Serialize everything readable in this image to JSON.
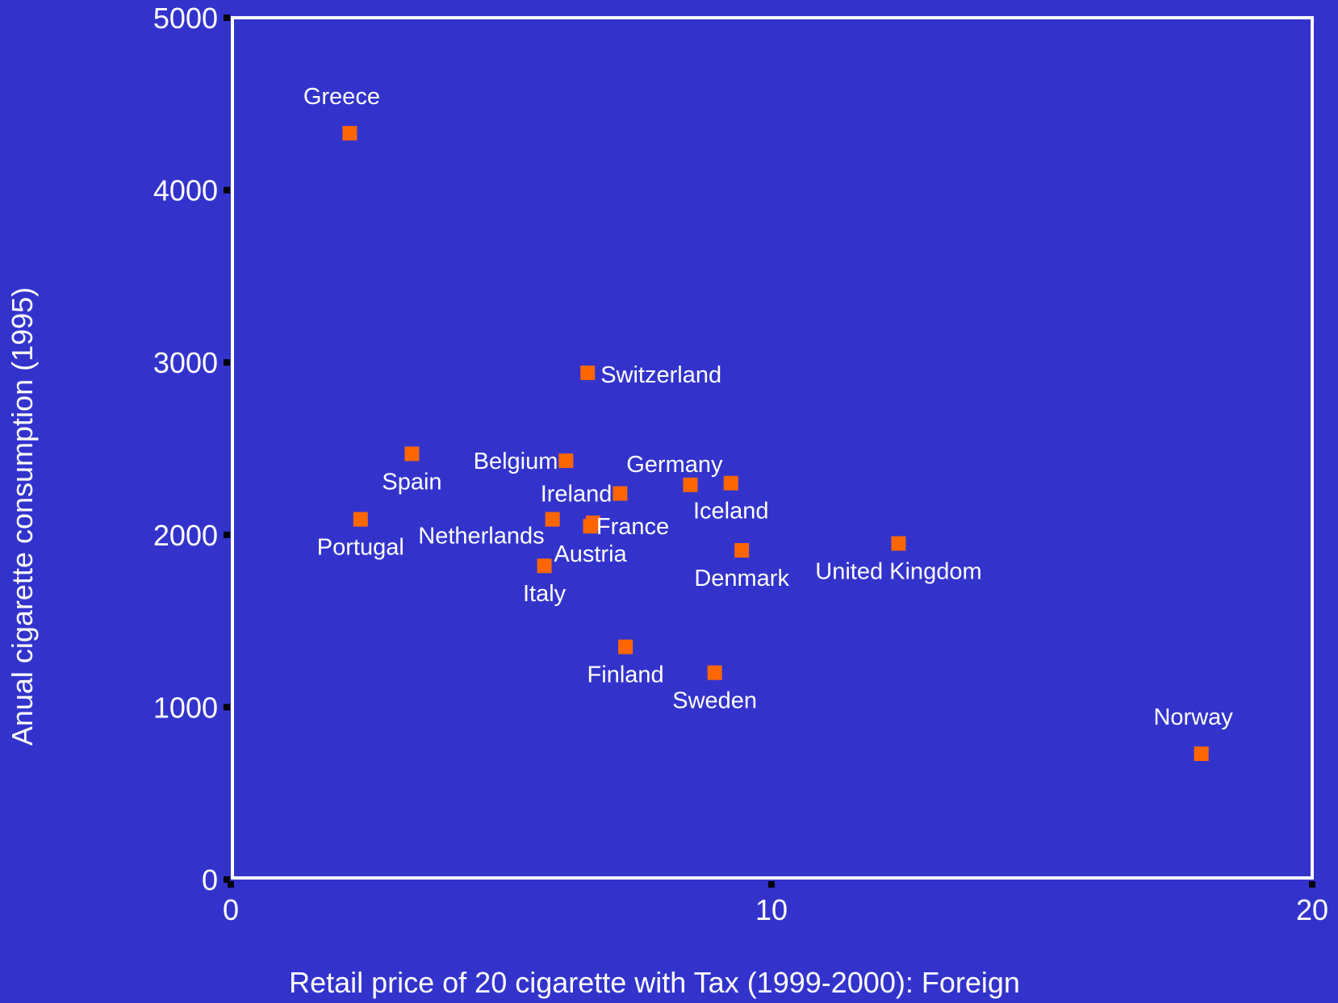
{
  "colors": {
    "background": "#3333cc",
    "frame": "#ffffff",
    "marker": "#ff6600",
    "text": "#ffffff",
    "tick_mark": "#000000"
  },
  "chart_data": {
    "type": "scatter",
    "title": "",
    "xlabel": "Retail price of 20 cigarette with Tax (1999-2000): Foreign",
    "ylabel": "Anual cigarette consumption (1995)",
    "xlim": [
      0,
      20
    ],
    "ylim": [
      0,
      5000
    ],
    "xticks": [
      0,
      10,
      20
    ],
    "yticks": [
      0,
      1000,
      2000,
      3000,
      4000,
      5000
    ],
    "grid": false,
    "legend": "none",
    "marker": "square",
    "points": [
      {
        "label": "Greece",
        "x": 2.2,
        "y": 4330,
        "label_pos": "above"
      },
      {
        "label": "Spain",
        "x": 3.35,
        "y": 2470,
        "label_pos": "below"
      },
      {
        "label": "Portugal",
        "x": 2.4,
        "y": 2090,
        "label_pos": "below"
      },
      {
        "label": "Switzerland",
        "x": 6.6,
        "y": 2940,
        "label_pos": "right"
      },
      {
        "label": "Belgium",
        "x": 6.2,
        "y": 2430,
        "label_pos": "left"
      },
      {
        "label": "Ireland",
        "x": 7.2,
        "y": 2240,
        "label_pos": "left"
      },
      {
        "label": "Germany",
        "x": 8.5,
        "y": 2290,
        "label_pos": "above-left"
      },
      {
        "label": "Iceland",
        "x": 9.25,
        "y": 2300,
        "label_pos": "below"
      },
      {
        "label": "Netherlands",
        "x": 5.95,
        "y": 2090,
        "label_pos": "left-below"
      },
      {
        "label": "France",
        "x": 6.7,
        "y": 2070,
        "label_pos": "right-below"
      },
      {
        "label": "Austria",
        "x": 6.65,
        "y": 2050,
        "label_pos": "below"
      },
      {
        "label": "Italy",
        "x": 5.8,
        "y": 1820,
        "label_pos": "below"
      },
      {
        "label": "Denmark",
        "x": 9.45,
        "y": 1910,
        "label_pos": "below"
      },
      {
        "label": "United Kingdom",
        "x": 12.35,
        "y": 1950,
        "label_pos": "below"
      },
      {
        "label": "Finland",
        "x": 7.3,
        "y": 1350,
        "label_pos": "below"
      },
      {
        "label": "Sweden",
        "x": 8.95,
        "y": 1200,
        "label_pos": "below"
      },
      {
        "label": "Norway",
        "x": 17.95,
        "y": 730,
        "label_pos": "above"
      }
    ]
  }
}
